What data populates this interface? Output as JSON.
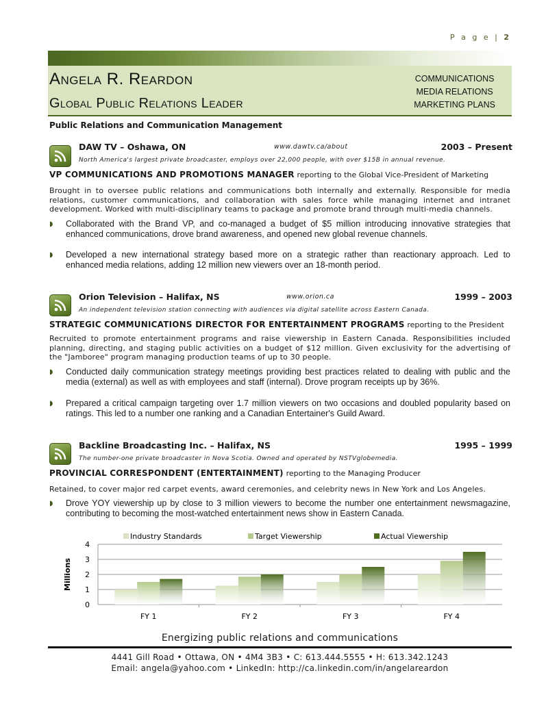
{
  "page_label": "P a g e",
  "page_number": "2",
  "header": {
    "name": "Angela R. Reardon",
    "role": "Global Public Relations Leader",
    "skills": [
      "COMMUNICATIONS",
      "MEDIA RELATIONS",
      "MARKETING PLANS"
    ]
  },
  "section_title": "Public Relations and Communication Management",
  "jobs": [
    {
      "company": "DAW TV – Oshawa, ON",
      "url": "www.dawtv.ca/about",
      "years": "2003 – Present",
      "description": "North America's largest private broadcaster, employs over 22,000 people, with over $15B in annual revenue.",
      "title": "VP COMMUNICATIONS AND PROMOTIONS MANAGER",
      "reporting": "reporting to the Global Vice-President of Marketing",
      "summary": "Brought in to oversee public relations and communications both internally and externally. Responsible for media relations, customer communications, and collaboration with sales force while managing internet and intranet development. Worked with multi-disciplinary teams to package and promote brand through multi-media channels.",
      "bullets": [
        "Collaborated with the Brand VP, and co-managed a budget of $5 million introducing innovative strategies that enhanced communications, drove brand awareness, and opened new global revenue channels.",
        "Developed a new international strategy based more on a strategic rather than reactionary approach. Led to enhanced media relations, adding 12 million new viewers over an 18-month period."
      ]
    },
    {
      "company": "Orion Television – Halifax, NS",
      "url": "www.orion.ca",
      "years": "1999 – 2003",
      "description": "An independent television station connecting with audiences via digital satellite across Eastern Canada.",
      "title": "STRATEGIC COMMUNICATIONS DIRECTOR FOR ENTERTAINMENT PROGRAMS",
      "reporting": "reporting to the President",
      "summary": "Recruited to promote entertainment programs and raise viewership in Eastern Canada. Responsibilities included planning, directing, and staging public activities on a budget of $12 million. Given exclusivity for the advertising of the \"Jamboree\" program managing production teams of up to 30 people.",
      "bullets": [
        "Conducted daily communication strategy meetings providing best practices related to dealing with public and the media (external) as well as with employees and staff (internal). Drove program receipts up by 36%.",
        "Prepared a critical campaign targeting over 1.7 million viewers on two occasions and doubled popularity based on ratings. This led to a number one ranking and a Canadian Entertainer's Guild Award."
      ]
    },
    {
      "company": "Backline Broadcasting Inc. – Halifax, NS",
      "url": "",
      "years": "1995 – 1999",
      "description": "The number-one private broadcaster in Nova Scotia. Owned and operated by NSTVglobemedia.",
      "title": "PROVINCIAL CORRESPONDENT (ENTERTAINMENT)",
      "reporting": "reporting to the Managing Producer",
      "summary": "Retained, to cover major red carpet events, award ceremonies, and celebrity news in New York and Los Angeles.",
      "bullets": [
        "Drove YOY viewership up by close to 3 million viewers to become the number one entertainment newsmagazine, contributing to becoming the most-watched entertainment news show in Eastern Canada."
      ]
    }
  ],
  "chart_data": {
    "type": "bar",
    "categories": [
      "FY 1",
      "FY 2",
      "FY 3",
      "FY 4"
    ],
    "series": [
      {
        "name": "Industry Standards",
        "values": [
          1.0,
          1.25,
          1.5,
          2.0
        ],
        "color": "#d9e5c1"
      },
      {
        "name": "Target Viewership",
        "values": [
          1.5,
          1.85,
          2.0,
          2.9
        ],
        "color": "#b6cb8e"
      },
      {
        "name": "Actual Viewership",
        "values": [
          1.7,
          2.0,
          2.5,
          3.5
        ],
        "color": "#4e6e22"
      }
    ],
    "ylabel": "Millions",
    "ylim": [
      0,
      4
    ],
    "yticks": [
      0,
      1,
      2,
      3,
      4
    ],
    "grid": true,
    "legend": "top"
  },
  "tagline": "Energizing public relations and communications",
  "contact": {
    "line1": "4441 Gill Road • Ottawa, ON • 4M4 3B3 • C: 613.444.5555 • H: 613.342.1243",
    "line2": "Email: angela@yahoo.com • LinkedIn: http://ca.linkedin.com/in/angelareardon"
  }
}
